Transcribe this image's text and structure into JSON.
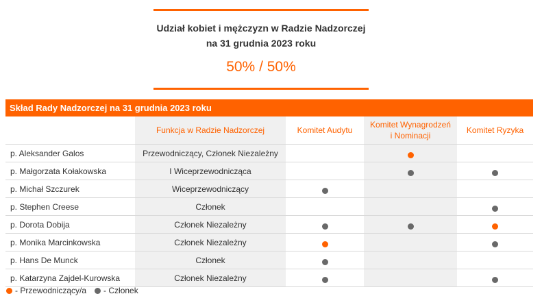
{
  "stat": {
    "title_line1": "Udział kobiet i mężczyzn w Radzie Nadzorczej",
    "title_line2": "na 31 grudnia 2023 roku",
    "value": "50% / 50%"
  },
  "table": {
    "header": "Skład Rady Nadzorczej na 31 grudnia 2023 roku",
    "columns": [
      "",
      "Funkcja w Radzie Nadzorczej",
      "Komitet Audytu",
      "Komitet Wynagrodzeń i Nominacji",
      "Komitet Ryzyka"
    ],
    "rows": [
      {
        "name": "p. Aleksander Galos",
        "function": "Przewodniczący, Członek Niezależny",
        "audit": "",
        "remuneration": "chair",
        "risk": ""
      },
      {
        "name": "p. Małgorzata Kołakowska",
        "function": "I Wiceprzewodnicząca",
        "audit": "",
        "remuneration": "member",
        "risk": "member"
      },
      {
        "name": "p. Michał Szczurek",
        "function": "Wiceprzewodniczący",
        "audit": "member",
        "remuneration": "",
        "risk": ""
      },
      {
        "name": "p. Stephen Creese",
        "function": "Członek",
        "audit": "",
        "remuneration": "",
        "risk": "member"
      },
      {
        "name": "p. Dorota Dobija",
        "function": "Członek Niezależny",
        "audit": "member",
        "remuneration": "member",
        "risk": "chair"
      },
      {
        "name": "p. Monika Marcinkowska",
        "function": "Członek Niezależny",
        "audit": "chair",
        "remuneration": "",
        "risk": "member"
      },
      {
        "name": "p. Hans De Munck",
        "function": "Członek",
        "audit": "member",
        "remuneration": "",
        "risk": ""
      },
      {
        "name": "p. Katarzyna Zajdel-Kurowska",
        "function": "Członek Niezależny",
        "audit": "member",
        "remuneration": "",
        "risk": "member"
      }
    ]
  },
  "legend": {
    "chair_label": "- Przewodniczący/a",
    "member_label": "- Członek"
  },
  "colors": {
    "accent": "#ff6200",
    "member_dot": "#696969"
  }
}
